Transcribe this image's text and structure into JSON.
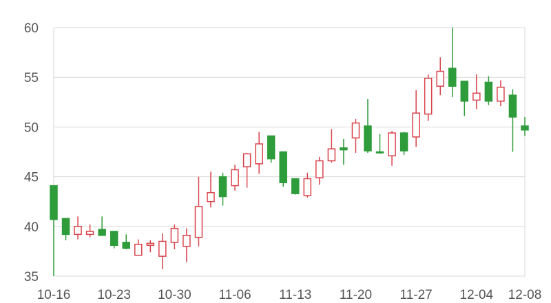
{
  "chart_data": {
    "type": "candlestick",
    "title": "",
    "xlabel": "",
    "ylabel": "",
    "ylim": [
      35,
      60
    ],
    "y_ticks": [
      "35",
      "40",
      "45",
      "50",
      "55",
      "60"
    ],
    "x_tick_labels": [
      "10-16",
      "10-23",
      "10-30",
      "11-06",
      "11-13",
      "11-20",
      "11-27",
      "12-04",
      "12-08"
    ],
    "grid": true,
    "colors": {
      "up": "#d9434b",
      "down": "#2e9c3a",
      "grid": "#d9d9d9",
      "axis_text": "#555555"
    },
    "candles": [
      {
        "date": "10-16",
        "open": 44.1,
        "close": 40.7,
        "high": 44.1,
        "low": 35.0
      },
      {
        "date": "10-17",
        "open": 40.8,
        "close": 39.2,
        "high": 40.8,
        "low": 38.6
      },
      {
        "date": "10-18",
        "open": 39.2,
        "close": 40.0,
        "high": 41.0,
        "low": 38.7
      },
      {
        "date": "10-19",
        "open": 39.2,
        "close": 39.5,
        "high": 40.2,
        "low": 38.9
      },
      {
        "date": "10-20",
        "open": 39.7,
        "close": 39.1,
        "high": 41.0,
        "low": 39.1
      },
      {
        "date": "10-23",
        "open": 39.5,
        "close": 38.1,
        "high": 39.5,
        "low": 37.8
      },
      {
        "date": "10-24",
        "open": 38.4,
        "close": 37.8,
        "high": 39.2,
        "low": 37.7
      },
      {
        "date": "10-25",
        "open": 37.1,
        "close": 38.2,
        "high": 38.7,
        "low": 37.1
      },
      {
        "date": "10-26",
        "open": 38.1,
        "close": 38.3,
        "high": 38.6,
        "low": 37.4
      },
      {
        "date": "10-27",
        "open": 37.0,
        "close": 38.5,
        "high": 39.3,
        "low": 35.7
      },
      {
        "date": "10-30",
        "open": 38.4,
        "close": 39.8,
        "high": 40.2,
        "low": 37.7
      },
      {
        "date": "10-31",
        "open": 38.0,
        "close": 39.1,
        "high": 39.8,
        "low": 36.4
      },
      {
        "date": "11-01",
        "open": 38.9,
        "close": 42.0,
        "high": 45.0,
        "low": 38.0
      },
      {
        "date": "11-02",
        "open": 42.5,
        "close": 43.4,
        "high": 45.5,
        "low": 41.9
      },
      {
        "date": "11-03",
        "open": 45.0,
        "close": 43.0,
        "high": 45.4,
        "low": 42.1
      },
      {
        "date": "11-06",
        "open": 44.1,
        "close": 45.7,
        "high": 46.2,
        "low": 43.6
      },
      {
        "date": "11-07",
        "open": 46.0,
        "close": 47.3,
        "high": 47.4,
        "low": 43.9
      },
      {
        "date": "11-08",
        "open": 46.3,
        "close": 48.3,
        "high": 49.5,
        "low": 45.3
      },
      {
        "date": "11-09",
        "open": 49.1,
        "close": 46.8,
        "high": 49.1,
        "low": 46.4
      },
      {
        "date": "11-10",
        "open": 47.5,
        "close": 44.4,
        "high": 47.5,
        "low": 44.0
      },
      {
        "date": "11-13",
        "open": 44.8,
        "close": 43.3,
        "high": 44.8,
        "low": 43.2
      },
      {
        "date": "11-14",
        "open": 43.1,
        "close": 44.8,
        "high": 45.4,
        "low": 42.9
      },
      {
        "date": "11-15",
        "open": 44.9,
        "close": 46.6,
        "high": 47.0,
        "low": 44.2
      },
      {
        "date": "11-16",
        "open": 46.6,
        "close": 47.8,
        "high": 49.8,
        "low": 46.4
      },
      {
        "date": "11-17",
        "open": 47.9,
        "close": 47.7,
        "high": 48.8,
        "low": 46.2
      },
      {
        "date": "11-20",
        "open": 48.9,
        "close": 50.4,
        "high": 50.8,
        "low": 47.4
      },
      {
        "date": "11-21",
        "open": 50.1,
        "close": 47.6,
        "high": 52.8,
        "low": 47.4
      },
      {
        "date": "11-22",
        "open": 47.5,
        "close": 47.4,
        "high": 49.3,
        "low": 47.3
      },
      {
        "date": "11-23",
        "open": 47.1,
        "close": 49.4,
        "high": 49.6,
        "low": 46.1
      },
      {
        "date": "11-24",
        "open": 49.4,
        "close": 47.6,
        "high": 49.5,
        "low": 47.2
      },
      {
        "date": "11-27",
        "open": 49.0,
        "close": 51.4,
        "high": 53.7,
        "low": 48.0
      },
      {
        "date": "11-28",
        "open": 51.3,
        "close": 54.9,
        "high": 55.3,
        "low": 50.6
      },
      {
        "date": "11-29",
        "open": 54.1,
        "close": 55.6,
        "high": 57.0,
        "low": 53.2
      },
      {
        "date": "11-30",
        "open": 55.9,
        "close": 54.1,
        "high": 60.0,
        "low": 53.0
      },
      {
        "date": "12-01",
        "open": 54.6,
        "close": 52.6,
        "high": 54.6,
        "low": 51.1
      },
      {
        "date": "12-04",
        "open": 52.7,
        "close": 53.4,
        "high": 55.3,
        "low": 51.8
      },
      {
        "date": "12-05",
        "open": 54.5,
        "close": 52.6,
        "high": 55.1,
        "low": 52.2
      },
      {
        "date": "12-06",
        "open": 52.6,
        "close": 54.0,
        "high": 54.7,
        "low": 52.1
      },
      {
        "date": "12-07",
        "open": 53.2,
        "close": 51.0,
        "high": 53.8,
        "low": 47.5
      },
      {
        "date": "12-08",
        "open": 50.1,
        "close": 49.7,
        "high": 51.0,
        "low": 49.1
      }
    ]
  }
}
